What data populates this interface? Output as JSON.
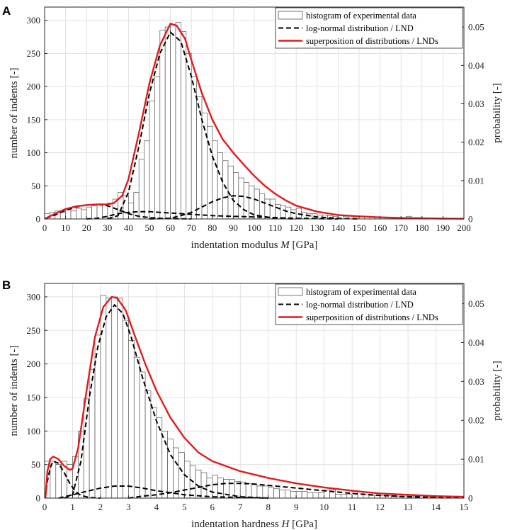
{
  "chart_data": [
    {
      "panel": "A",
      "type": "bar",
      "xlabel_text": "indentation modulus",
      "xlabel_var": "M",
      "xlabel_unit": "[GPa]",
      "ylabel_left": "number of indents [-]",
      "ylabel_right": "probability [-]",
      "xlim": [
        0,
        200
      ],
      "ylim_left": [
        0,
        320
      ],
      "ylim_right": [
        0,
        0.0552
      ],
      "xticks": [
        0,
        10,
        20,
        30,
        40,
        50,
        60,
        70,
        80,
        90,
        100,
        110,
        120,
        130,
        140,
        150,
        160,
        170,
        180,
        190,
        200
      ],
      "yticks_left": [
        0,
        50,
        100,
        150,
        200,
        250,
        300
      ],
      "yticks_right": [
        0,
        0.01,
        0.02,
        0.03,
        0.04,
        0.05
      ],
      "yticks_right_labels": [
        "0",
        "0.01",
        "0.02",
        "0.03",
        "0.04",
        "0.05"
      ],
      "bin_width": 2.5,
      "histogram_counts": [
        8,
        10,
        12,
        10,
        14,
        12,
        16,
        14,
        18,
        20,
        22,
        22,
        24,
        30,
        40,
        36,
        24,
        40,
        90,
        118,
        178,
        215,
        285,
        290,
        293,
        297,
        283,
        250,
        215,
        185,
        160,
        140,
        118,
        100,
        88,
        80,
        70,
        62,
        55,
        50,
        45,
        38,
        30,
        30,
        22,
        20,
        18,
        14,
        16,
        10,
        8,
        8,
        6,
        6,
        5,
        4,
        5,
        4,
        4,
        3,
        3,
        3,
        3,
        2,
        2,
        2,
        2,
        2,
        2,
        4,
        2,
        2,
        1,
        1,
        1,
        1,
        1,
        1,
        1,
        1
      ],
      "series": [
        {
          "name": "log-normal distribution / LND",
          "style": "dashed",
          "component": 1,
          "points": [
            [
              0.5,
              0.8
            ],
            [
              5,
              6
            ],
            [
              10,
              13
            ],
            [
              15,
              18
            ],
            [
              20,
              21
            ],
            [
              25,
              22
            ],
            [
              30,
              20
            ],
            [
              35,
              14
            ],
            [
              40,
              8
            ],
            [
              45,
              4
            ],
            [
              50,
              2
            ],
            [
              55,
              1
            ],
            [
              60,
              0.5
            ],
            [
              70,
              0
            ]
          ]
        },
        {
          "name": "log-normal distribution / LND",
          "style": "dashed",
          "component": 2,
          "points": [
            [
              30,
              0
            ],
            [
              35,
              5
            ],
            [
              40,
              40
            ],
            [
              45,
              110
            ],
            [
              50,
              190
            ],
            [
              55,
              250
            ],
            [
              60,
              282
            ],
            [
              65,
              268
            ],
            [
              70,
              215
            ],
            [
              75,
              150
            ],
            [
              80,
              95
            ],
            [
              85,
              55
            ],
            [
              90,
              28
            ],
            [
              95,
              14
            ],
            [
              100,
              6
            ],
            [
              110,
              1
            ],
            [
              120,
              0
            ]
          ]
        },
        {
          "name": "log-normal distribution / LND",
          "style": "dashed",
          "component": 3,
          "points": [
            [
              20,
              0
            ],
            [
              25,
              1
            ],
            [
              30,
              4
            ],
            [
              35,
              8
            ],
            [
              40,
              10
            ],
            [
              45,
              11
            ],
            [
              50,
              11
            ],
            [
              55,
              10
            ],
            [
              60,
              9
            ],
            [
              65,
              8
            ],
            [
              70,
              7
            ],
            [
              80,
              5
            ],
            [
              90,
              4
            ],
            [
              100,
              3
            ],
            [
              110,
              2
            ],
            [
              120,
              1
            ],
            [
              140,
              0
            ]
          ]
        },
        {
          "name": "log-normal distribution / LND",
          "style": "dashed",
          "component": 4,
          "points": [
            [
              50,
              0
            ],
            [
              60,
              1
            ],
            [
              65,
              5
            ],
            [
              70,
              10
            ],
            [
              75,
              18
            ],
            [
              80,
              26
            ],
            [
              85,
              32
            ],
            [
              90,
              35
            ],
            [
              95,
              34
            ],
            [
              100,
              30
            ],
            [
              105,
              24
            ],
            [
              110,
              18
            ],
            [
              115,
              12
            ],
            [
              120,
              8
            ],
            [
              130,
              3
            ],
            [
              140,
              1
            ],
            [
              150,
              0
            ]
          ]
        },
        {
          "name": "superposition of distributions / LNDs",
          "style": "solid",
          "color": "#e31a1c",
          "points": [
            [
              0,
              0
            ],
            [
              5,
              8
            ],
            [
              10,
              15
            ],
            [
              15,
              19
            ],
            [
              20,
              21
            ],
            [
              25,
              22
            ],
            [
              30,
              22
            ],
            [
              33,
              24
            ],
            [
              37,
              35
            ],
            [
              40,
              60
            ],
            [
              45,
              130
            ],
            [
              50,
              205
            ],
            [
              55,
              262
            ],
            [
              60,
              295
            ],
            [
              63,
              292
            ],
            [
              67,
              272
            ],
            [
              70,
              240
            ],
            [
              75,
              190
            ],
            [
              80,
              150
            ],
            [
              85,
              120
            ],
            [
              90,
              100
            ],
            [
              95,
              82
            ],
            [
              100,
              65
            ],
            [
              105,
              50
            ],
            [
              110,
              38
            ],
            [
              115,
              28
            ],
            [
              120,
              20
            ],
            [
              130,
              11
            ],
            [
              140,
              6
            ],
            [
              150,
              4
            ],
            [
              160,
              2.5
            ],
            [
              170,
              1.5
            ],
            [
              180,
              1
            ],
            [
              190,
              0.5
            ],
            [
              200,
              0.3
            ]
          ]
        }
      ],
      "legend": [
        "histogram of experimental data",
        "log-normal distribution / LND",
        "superposition of distributions / LNDs"
      ],
      "legend_loc": "top-right"
    },
    {
      "panel": "B",
      "type": "bar",
      "xlabel_text": "indentation hardness",
      "xlabel_var": "H",
      "xlabel_unit": "[GPa]",
      "ylabel_left": "number of indents [-]",
      "ylabel_right": "probability [-]",
      "xlim": [
        0,
        15
      ],
      "ylim_left": [
        0,
        320
      ],
      "ylim_right": [
        0,
        0.0552
      ],
      "xticks": [
        0,
        1,
        2,
        3,
        4,
        5,
        6,
        7,
        8,
        9,
        10,
        11,
        12,
        13,
        14,
        15
      ],
      "yticks_left": [
        0,
        50,
        100,
        150,
        200,
        250,
        300
      ],
      "yticks_right": [
        0,
        0.01,
        0.02,
        0.03,
        0.04,
        0.05
      ],
      "yticks_right_labels": [
        "0",
        "0.01",
        "0.02",
        "0.03",
        "0.04",
        "0.05"
      ],
      "bin_width": 0.2,
      "histogram_counts": [
        55,
        55,
        50,
        55,
        50,
        62,
        100,
        148,
        192,
        243,
        302,
        298,
        300,
        298,
        265,
        235,
        210,
        188,
        160,
        135,
        120,
        100,
        88,
        75,
        68,
        55,
        48,
        42,
        38,
        30,
        34,
        30,
        28,
        28,
        25,
        24,
        22,
        20,
        18,
        18,
        16,
        14,
        12,
        12,
        10,
        10,
        10,
        8,
        8,
        8,
        12,
        12,
        6,
        6,
        6,
        10,
        10,
        5,
        4,
        4,
        4,
        4,
        4,
        3,
        3,
        3,
        3,
        3,
        2,
        2,
        2,
        2,
        2,
        2,
        2
      ],
      "series": [
        {
          "name": "log-normal distribution / LND",
          "style": "dashed",
          "component": 1,
          "points": [
            [
              0.02,
              0
            ],
            [
              0.1,
              25
            ],
            [
              0.2,
              45
            ],
            [
              0.3,
              55
            ],
            [
              0.5,
              52
            ],
            [
              0.7,
              38
            ],
            [
              0.9,
              22
            ],
            [
              1.1,
              10
            ],
            [
              1.3,
              4
            ],
            [
              1.6,
              1
            ],
            [
              2,
              0
            ]
          ]
        },
        {
          "name": "log-normal distribution / LND",
          "style": "dashed",
          "component": 2,
          "points": [
            [
              0.7,
              0
            ],
            [
              1.0,
              5
            ],
            [
              1.3,
              55
            ],
            [
              1.6,
              150
            ],
            [
              1.9,
              225
            ],
            [
              2.2,
              270
            ],
            [
              2.5,
              288
            ],
            [
              2.8,
              275
            ],
            [
              3.1,
              240
            ],
            [
              3.5,
              180
            ],
            [
              4,
              115
            ],
            [
              4.5,
              65
            ],
            [
              5,
              35
            ],
            [
              5.5,
              18
            ],
            [
              6,
              9
            ],
            [
              7,
              2
            ],
            [
              8,
              0
            ]
          ]
        },
        {
          "name": "log-normal distribution / LND",
          "style": "dashed",
          "component": 3,
          "points": [
            [
              0.5,
              0
            ],
            [
              1,
              5
            ],
            [
              1.5,
              10
            ],
            [
              2,
              15
            ],
            [
              2.5,
              18
            ],
            [
              3,
              18
            ],
            [
              3.5,
              15
            ],
            [
              4,
              11
            ],
            [
              4.5,
              8
            ],
            [
              5,
              5
            ],
            [
              6,
              2
            ],
            [
              7,
              1
            ],
            [
              8,
              0
            ]
          ]
        },
        {
          "name": "log-normal distribution / LND",
          "style": "dashed",
          "component": 4,
          "points": [
            [
              3,
              0
            ],
            [
              3.5,
              3
            ],
            [
              4,
              5
            ],
            [
              4.5,
              8
            ],
            [
              5,
              12
            ],
            [
              5.5,
              16
            ],
            [
              6,
              20
            ],
            [
              6.5,
              22
            ],
            [
              7,
              22
            ],
            [
              7.5,
              21
            ],
            [
              8,
              19
            ],
            [
              9,
              15
            ],
            [
              10,
              11
            ],
            [
              11,
              7
            ],
            [
              12,
              4
            ],
            [
              13,
              2
            ],
            [
              14,
              1
            ],
            [
              15,
              0.5
            ]
          ]
        },
        {
          "name": "superposition of distributions / LNDs",
          "style": "solid",
          "color": "#e31a1c",
          "points": [
            [
              0.03,
              0
            ],
            [
              0.1,
              40
            ],
            [
              0.2,
              58
            ],
            [
              0.3,
              62
            ],
            [
              0.5,
              58
            ],
            [
              0.7,
              48
            ],
            [
              0.9,
              42
            ],
            [
              1.0,
              44
            ],
            [
              1.2,
              75
            ],
            [
              1.5,
              160
            ],
            [
              1.8,
              240
            ],
            [
              2.1,
              285
            ],
            [
              2.4,
              300
            ],
            [
              2.6,
              298
            ],
            [
              2.9,
              280
            ],
            [
              3.2,
              245
            ],
            [
              3.6,
              200
            ],
            [
              4,
              160
            ],
            [
              4.5,
              120
            ],
            [
              5,
              90
            ],
            [
              5.5,
              68
            ],
            [
              6,
              55
            ],
            [
              7,
              40
            ],
            [
              8,
              30
            ],
            [
              9,
              22
            ],
            [
              10,
              16
            ],
            [
              11,
              11
            ],
            [
              12,
              7
            ],
            [
              13,
              5
            ],
            [
              14,
              3
            ],
            [
              15,
              2
            ]
          ]
        }
      ],
      "legend": [
        "histogram of experimental data",
        "log-normal distribution / LND",
        "superposition of distributions / LNDs"
      ],
      "legend_loc": "top-right"
    }
  ]
}
